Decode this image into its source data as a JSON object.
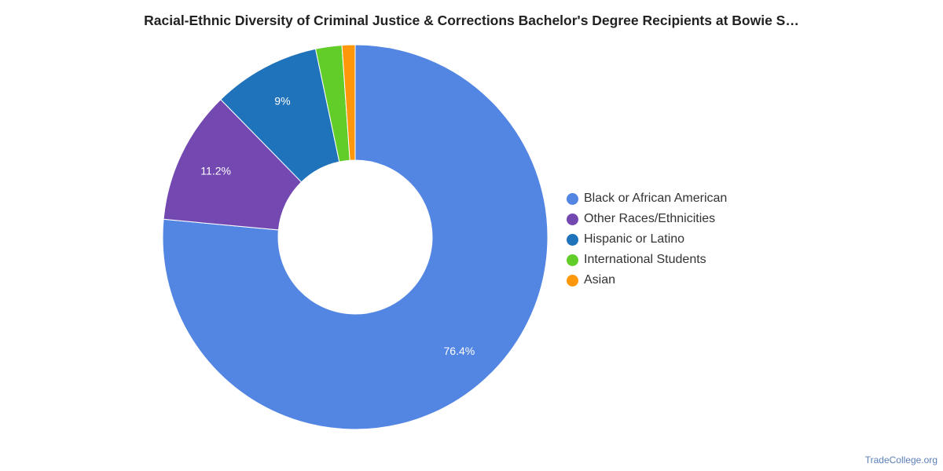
{
  "chart_data": {
    "type": "pie",
    "title": "Racial-Ethnic Diversity of Criminal Justice & Corrections Bachelor's Degree Recipients at Bowie S…",
    "categories": [
      "Black or African American",
      "Other Races/Ethnicities",
      "Hispanic or Latino",
      "International Students",
      "Asian"
    ],
    "values": [
      76.4,
      11.2,
      9,
      2.2,
      1.1
    ],
    "data_labels": [
      "76.4%",
      "11.2%",
      "9%",
      "",
      ""
    ],
    "colors": [
      "#5385e3",
      "#7448b1",
      "#1f73bb",
      "#62cd28",
      "#fe980a"
    ],
    "donut": true,
    "legend_position": "right"
  },
  "source": "TradeCollege.org"
}
